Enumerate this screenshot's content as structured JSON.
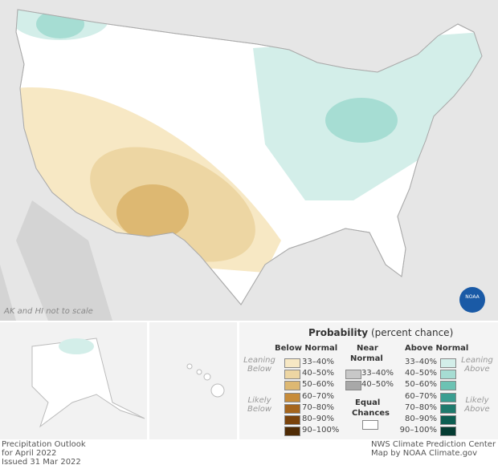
{
  "map": {
    "note": "AK and HI not to scale",
    "logo": "NOAA"
  },
  "legend": {
    "title": "Probability",
    "subtitle": "(percent chance)",
    "below": {
      "header": "Below Normal",
      "leaning": "Leaning Below",
      "likely": "Likely Below",
      "items": [
        {
          "label": "33–40%",
          "color": "#f7e8c4"
        },
        {
          "label": "40–50%",
          "color": "#edd6a3"
        },
        {
          "label": "50–60%",
          "color": "#ddb872"
        },
        {
          "label": "60–70%",
          "color": "#c78c3a"
        },
        {
          "label": "70–80%",
          "color": "#a5651d"
        },
        {
          "label": "80–90%",
          "color": "#7a430c"
        },
        {
          "label": "90–100%",
          "color": "#4f2b05"
        }
      ]
    },
    "near": {
      "header1": "Near",
      "header2": "Normal",
      "items": [
        {
          "label": "33–40%",
          "color": "#c8c8c8"
        },
        {
          "label": "40–50%",
          "color": "#a8a8a8"
        }
      ]
    },
    "equal": {
      "label1": "Equal",
      "label2": "Chances",
      "color": "#ffffff"
    },
    "above": {
      "header": "Above Normal",
      "leaning": "Leaning Above",
      "likely": "Likely Above",
      "items": [
        {
          "label": "33–40%",
          "color": "#d3eee9"
        },
        {
          "label": "40–50%",
          "color": "#a6ddd3"
        },
        {
          "label": "50–60%",
          "color": "#6cc2b3"
        },
        {
          "label": "60–70%",
          "color": "#3b9e91"
        },
        {
          "label": "70–80%",
          "color": "#1f7a6d"
        },
        {
          "label": "80–90%",
          "color": "#0d5e52"
        },
        {
          "label": "90–100%",
          "color": "#053d33"
        }
      ]
    }
  },
  "footer": {
    "left": [
      "Precipitation Outlook",
      "for April 2022",
      "Issued 31 Mar 2022"
    ],
    "right": [
      "NWS Climate Prediction Center",
      "Map by NOAA Climate.gov"
    ]
  }
}
